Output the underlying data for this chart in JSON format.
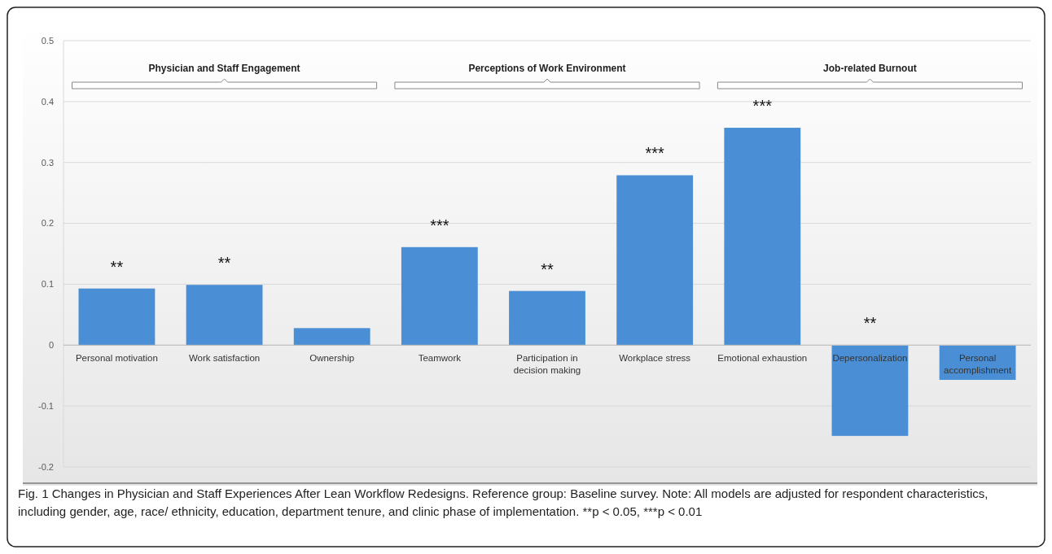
{
  "chart_data": {
    "type": "bar",
    "categories": [
      "Personal motivation",
      "Work satisfaction",
      "Ownership",
      "Teamwork",
      "Participation in decision making",
      "Workplace stress",
      "Emotional exhaustion",
      "Depersonalization",
      "Personal accomplishment"
    ],
    "values": [
      0.093,
      0.099,
      0.028,
      0.161,
      0.089,
      0.279,
      0.357,
      -0.149,
      -0.057
    ],
    "color": "#4a8fd6",
    "ylim": [
      -0.2,
      0.5
    ],
    "yticks": [
      -0.2,
      -0.1,
      0,
      0.1,
      0.2,
      0.3,
      0.4,
      0.5
    ],
    "grid": "y",
    "annotations": [
      "Physician and Staff Engagement",
      "Perceptions of Work Environment",
      "Job-related Burnout",
      {
        "text": "**",
        "x": "Personal motivation",
        "y": 0.093
      },
      {
        "text": "**",
        "x": "Work satisfaction",
        "y": 0.099
      },
      {
        "text": "***",
        "x": "Teamwork",
        "y": 0.161
      },
      {
        "text": "**",
        "x": "Participation in decision making",
        "y": 0.089
      },
      {
        "text": "***",
        "x": "Workplace stress",
        "y": 0.279
      },
      {
        "text": "***",
        "x": "Emotional exhaustion",
        "y": 0.357
      },
      {
        "text": "**",
        "x": "Depersonalization",
        "y": 0
      },
      "Fig. 1 Changes in Physician and Staff Experiences After Lean Workflow Redesigns. Reference group: Baseline survey. Note: All models are adjusted for respondent characteristics, including gender, age, race/ ethnicity, education, department tenure, and clinic phase of implementation. **p < 0.05, ***p < 0.01"
    ]
  }
}
